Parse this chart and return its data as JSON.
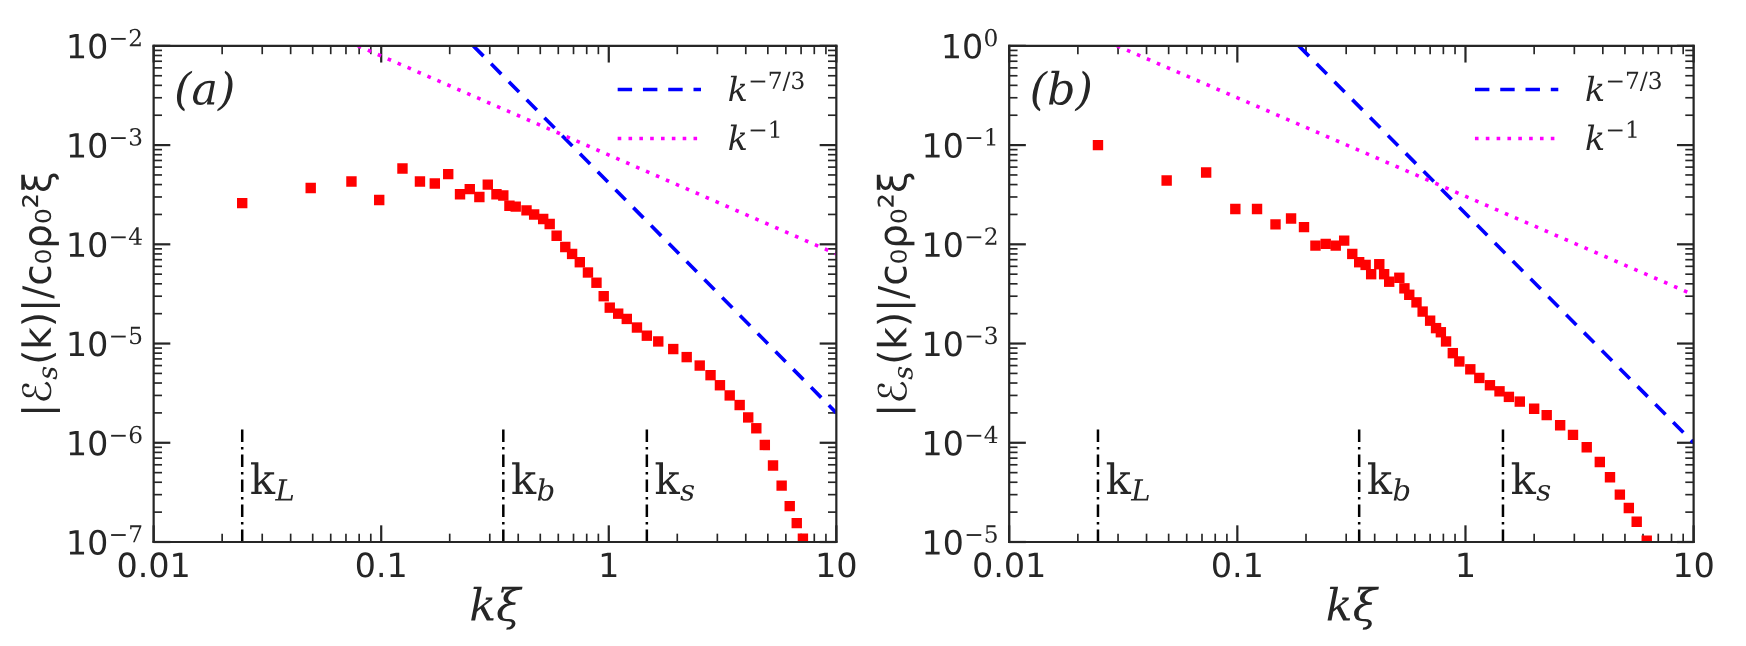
{
  "chart_data": [
    {
      "type": "scatter",
      "log": "xy",
      "xlabel": "kξ",
      "ylabel": "|ℰ$_{s}$(k)|/c₀ρ₀²ξ",
      "annotations": [
        "(a)"
      ],
      "legend": "top right",
      "grid": false,
      "xlim": [
        0.01,
        10
      ],
      "xticks": [
        0.01,
        0.1,
        1,
        10
      ],
      "ylim": [
        1e-07,
        0.01
      ],
      "yticks": [
        {
          "value": 1e-07,
          "label": "10$^{−7}$"
        },
        {
          "value": 1e-06,
          "label": "10$^{−6}$"
        },
        {
          "value": 1e-05,
          "label": "10$^{−5}$"
        },
        {
          "value": 0.0001,
          "label": "10$^{−4}$"
        },
        {
          "value": 0.001,
          "label": "10$^{−3}$"
        },
        {
          "value": 0.01,
          "label": "10$^{−2}$"
        }
      ],
      "ref_lines": [
        {
          "axis": "x",
          "value": 0.0245,
          "label": "k$_{L}$",
          "color": "#000000",
          "line_style": "dashdot"
        },
        {
          "axis": "x",
          "value": 0.344,
          "label": "k$_{b}$",
          "color": "#000000",
          "line_style": "dashdot"
        },
        {
          "axis": "x",
          "value": 1.47,
          "label": "k$_{s}$",
          "color": "#000000",
          "line_style": "dashdot"
        }
      ],
      "series": [
        {
          "type": "scatter",
          "color": "#ff0000",
          "marker": "square",
          "x": [
            0.0245,
            0.049,
            0.074,
            0.098,
            0.124,
            0.148,
            0.172,
            0.197,
            0.222,
            0.245,
            0.27,
            0.294,
            0.321,
            0.344,
            0.366,
            0.39,
            0.435,
            0.47,
            0.515,
            0.55,
            0.59,
            0.644,
            0.69,
            0.746,
            0.81,
            0.883,
            0.95,
            1.01,
            1.1,
            1.2,
            1.33,
            1.47,
            1.65,
            1.92,
            2.2,
            2.51,
            2.8,
            3.08,
            3.4,
            3.76,
            4.1,
            4.45,
            4.85,
            5.27,
            5.75,
            6.24,
            6.7,
            7.13
          ],
          "values": [
            0.00026,
            0.00037,
            0.00043,
            0.00028,
            0.00058,
            0.00043,
            0.00041,
            0.00051,
            0.00032,
            0.00036,
            0.0003,
            0.0004,
            0.00032,
            0.00031,
            0.000245,
            0.00024,
            0.00022,
            0.0002,
            0.00018,
            0.00016,
            0.000122,
            9.4e-05,
            8e-05,
            6.6e-05,
            5.2e-05,
            4.1e-05,
            3e-05,
            2.3e-05,
            2e-05,
            1.77e-05,
            1.45e-05,
            1.2e-05,
            1.05e-05,
            8.8e-06,
            7.3e-06,
            6e-06,
            4.8e-06,
            3.8e-06,
            3e-06,
            2.4e-06,
            1.8e-06,
            1.4e-06,
            9.5e-07,
            5.9e-07,
            3.7e-07,
            2.3e-07,
            1.55e-07,
            1.08e-07
          ]
        },
        {
          "type": "line",
          "name": "k$^{−7/3}$",
          "color": "#0000ff",
          "line_style": "dashed",
          "marker": "none",
          "x": [
            0.254,
            10
          ],
          "values": [
            0.01,
            2e-06
          ]
        },
        {
          "type": "line",
          "name": "k$^{−1}$",
          "color": "#ff00ff",
          "line_style": "dotted",
          "marker": "none",
          "x": [
            0.079,
            10
          ],
          "values": [
            0.01,
            8e-05
          ]
        }
      ]
    },
    {
      "type": "scatter",
      "log": "xy",
      "xlabel": "kξ",
      "ylabel": "|ℰ$_{s}$(k)|/c₀ρ₀²ξ",
      "annotations": [
        "(b)"
      ],
      "legend": "top right",
      "grid": false,
      "xlim": [
        0.01,
        10
      ],
      "xticks": [
        0.01,
        0.1,
        1,
        10
      ],
      "ylim": [
        1e-05,
        1
      ],
      "yticks": [
        {
          "value": 1e-05,
          "label": "10$^{−5}$"
        },
        {
          "value": 0.0001,
          "label": "10$^{−4}$"
        },
        {
          "value": 0.001,
          "label": "10$^{−3}$"
        },
        {
          "value": 0.01,
          "label": "10$^{−2}$"
        },
        {
          "value": 0.1,
          "label": "10$^{−1}$"
        },
        {
          "value": 1,
          "label": "10$^{0}$"
        }
      ],
      "ref_lines": [
        {
          "axis": "x",
          "value": 0.0245,
          "label": "k$_{L}$",
          "color": "#000000",
          "line_style": "dashdot"
        },
        {
          "axis": "x",
          "value": 0.342,
          "label": "k$_{b}$",
          "color": "#000000",
          "line_style": "dashdot"
        },
        {
          "axis": "x",
          "value": 1.46,
          "label": "k$_{s}$",
          "color": "#000000",
          "line_style": "dashdot"
        }
      ],
      "series": [
        {
          "type": "scatter",
          "color": "#ff0000",
          "marker": "square",
          "x": [
            0.0245,
            0.049,
            0.073,
            0.098,
            0.122,
            0.147,
            0.172,
            0.196,
            0.22,
            0.244,
            0.27,
            0.294,
            0.319,
            0.342,
            0.365,
            0.386,
            0.419,
            0.44,
            0.463,
            0.49,
            0.513,
            0.54,
            0.567,
            0.61,
            0.649,
            0.7,
            0.743,
            0.78,
            0.822,
            0.88,
            0.94,
            1.05,
            1.15,
            1.28,
            1.41,
            1.55,
            1.73,
            2.0,
            2.27,
            2.6,
            2.96,
            3.4,
            3.88,
            4.3,
            4.75,
            5.2,
            5.63,
            6.23
          ],
          "values": [
            0.1,
            0.044,
            0.053,
            0.0227,
            0.0227,
            0.0159,
            0.0182,
            0.0149,
            0.0097,
            0.0101,
            0.0097,
            0.0109,
            0.008,
            0.0066,
            0.0062,
            0.005,
            0.0063,
            0.005,
            0.0042,
            null,
            0.0046,
            0.0036,
            0.0031,
            0.0026,
            0.0021,
            0.0017,
            0.00143,
            0.0013,
            0.00105,
            0.0008,
            0.00066,
            0.00055,
            0.00045,
            0.00038,
            0.00033,
            0.00029,
            0.00026,
            0.00022,
            0.00019,
            0.00015,
            0.00012,
            9e-05,
            6.4e-05,
            4.5e-05,
            3e-05,
            2.2e-05,
            1.6e-05,
            1.03e-05
          ]
        },
        {
          "type": "line",
          "name": "k$^{−7/3}$",
          "color": "#0000ff",
          "line_style": "dashed",
          "marker": "none",
          "x": [
            0.186,
            10
          ],
          "values": [
            1,
            0.0001
          ]
        },
        {
          "type": "line",
          "name": "k$^{−1}$",
          "color": "#ff00ff",
          "line_style": "dotted",
          "marker": "none",
          "x": [
            0.0297,
            10
          ],
          "values": [
            1,
            0.0031
          ]
        }
      ]
    }
  ]
}
